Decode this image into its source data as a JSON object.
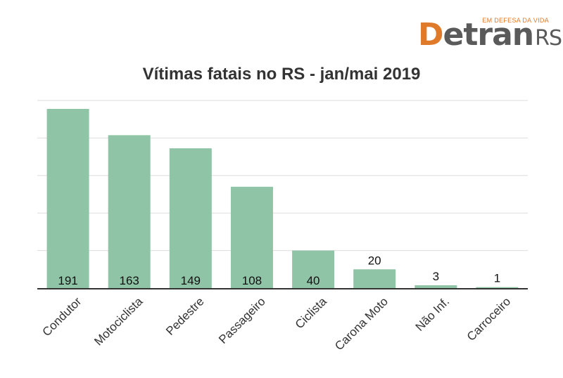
{
  "logo": {
    "tagline": "EM DEFESA DA VIDA",
    "brand_letter": "D",
    "brand_rest": "etran",
    "brand_suffix": "RS",
    "colors": {
      "accent": "#e07a2b",
      "text": "#5a5a5a"
    }
  },
  "chart_data": {
    "type": "bar",
    "title": "Vítimas fatais no RS - jan/mai 2019",
    "xlabel": "",
    "ylabel": "",
    "categories": [
      "Condutor",
      "Motociclista",
      "Pedestre",
      "Passageiro",
      "Ciclista",
      "Carona Moto",
      "Não Inf.",
      "Carroceiro"
    ],
    "values": [
      191,
      163,
      149,
      108,
      40,
      20,
      3,
      1
    ],
    "ylim": [
      0,
      200
    ],
    "grid": true,
    "legend": "none",
    "colors": {
      "bar": "#8fc4a6",
      "grid": "#dddddd",
      "axis": "#333333"
    }
  }
}
